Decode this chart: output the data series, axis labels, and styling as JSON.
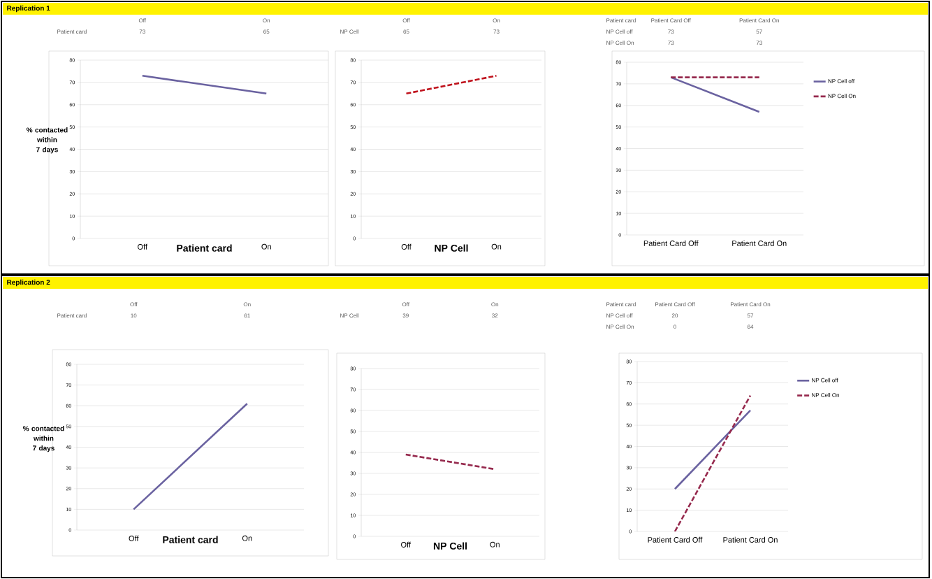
{
  "chart_data": [
    {
      "type": "line",
      "title": "Replication 1",
      "categories": [
        "Off",
        "On"
      ],
      "xlabel": "Patient card",
      "ylabel": "% contacted within 7 days",
      "ylim": [
        0,
        80
      ],
      "yticks": [
        0,
        10,
        20,
        30,
        40,
        50,
        60,
        70,
        80
      ],
      "grid": "y",
      "data_labels": true,
      "series": [
        {
          "name": "Patient card",
          "color": "#6a62a0",
          "line_style": "solid",
          "values": [
            73,
            65
          ]
        }
      ]
    },
    {
      "type": "line",
      "categories": [
        "Off",
        "On"
      ],
      "xlabel": "NP Cell",
      "ylim": [
        0,
        80
      ],
      "yticks": [
        0,
        10,
        20,
        30,
        40,
        50,
        60,
        70,
        80
      ],
      "grid": "y",
      "data_labels": true,
      "series": [
        {
          "name": "NP Cell",
          "color": "#c0141e",
          "line_style": "dashed",
          "values": [
            65,
            73
          ]
        }
      ]
    },
    {
      "type": "line",
      "categories": [
        "Patient Card Off",
        "Patient Card On"
      ],
      "annotations": [
        "Patient card"
      ],
      "ylim": [
        0,
        80
      ],
      "yticks": [
        0,
        10,
        20,
        30,
        40,
        50,
        60,
        70,
        80
      ],
      "grid": "y",
      "data_labels": true,
      "legend": "right",
      "series": [
        {
          "name": "NP Cell off",
          "color": "#6a62a0",
          "line_style": "solid",
          "values": [
            73,
            57
          ]
        },
        {
          "name": "NP Cell On",
          "color": "#962a4e",
          "line_style": "dashed",
          "values": [
            73,
            73
          ]
        }
      ]
    },
    {
      "type": "line",
      "title": "Replication 2",
      "categories": [
        "Off",
        "On"
      ],
      "xlabel": "Patient card",
      "ylabel": "% contacted within 7 days",
      "ylim": [
        0,
        80
      ],
      "yticks": [
        0,
        10,
        20,
        30,
        40,
        50,
        60,
        70,
        80
      ],
      "grid": "y",
      "data_labels": true,
      "series": [
        {
          "name": "Patient card",
          "color": "#6a62a0",
          "line_style": "solid",
          "values": [
            10,
            61
          ]
        }
      ]
    },
    {
      "type": "line",
      "categories": [
        "Off",
        "On"
      ],
      "xlabel": "NP Cell",
      "ylim": [
        0,
        80
      ],
      "yticks": [
        0,
        10,
        20,
        30,
        40,
        50,
        60,
        70,
        80
      ],
      "grid": "y",
      "data_labels": true,
      "series": [
        {
          "name": "NP Cell",
          "color": "#962a4e",
          "line_style": "dashed",
          "values": [
            39,
            32
          ]
        }
      ]
    },
    {
      "type": "line",
      "categories": [
        "Patient Card Off",
        "Patient Card On"
      ],
      "annotations": [
        "Patient card"
      ],
      "ylim": [
        0,
        80
      ],
      "yticks": [
        0,
        10,
        20,
        30,
        40,
        50,
        60,
        70,
        80
      ],
      "grid": "y",
      "data_labels": true,
      "legend": "right",
      "series": [
        {
          "name": "NP Cell off",
          "color": "#6a62a0",
          "line_style": "solid",
          "values": [
            20,
            57
          ]
        },
        {
          "name": "NP Cell On",
          "color": "#962a4e",
          "line_style": "dashed",
          "values": [
            0,
            64
          ]
        }
      ]
    }
  ]
}
